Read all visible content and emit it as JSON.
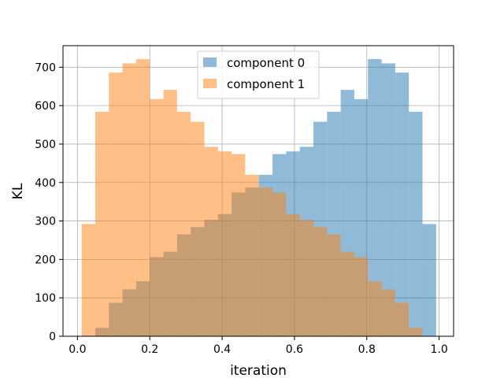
{
  "chart_data": {
    "type": "bar",
    "subtype": "overlapping-histogram",
    "title": "",
    "xlabel": "iteration",
    "ylabel": "KL",
    "xlim": [
      -0.04,
      1.04
    ],
    "ylim": [
      0,
      756
    ],
    "xticks": [
      0.0,
      0.2,
      0.4,
      0.6,
      0.8,
      1.0
    ],
    "xtick_labels": [
      "0.0",
      "0.2",
      "0.4",
      "0.6",
      "0.8",
      "1.0"
    ],
    "yticks": [
      0,
      100,
      200,
      300,
      400,
      500,
      600,
      700
    ],
    "ytick_labels": [
      "0",
      "100",
      "200",
      "300",
      "400",
      "500",
      "600",
      "700"
    ],
    "grid": true,
    "legend_position": "upper center",
    "bin_start": 0.0115,
    "bin_width": 0.0377,
    "series": [
      {
        "name": "component 0",
        "color": "#1f77b4",
        "alpha": 0.5,
        "values": [
          0,
          22,
          87,
          122,
          143,
          206,
          220,
          265,
          284,
          303,
          318,
          374,
          387,
          420,
          474,
          481,
          493,
          558,
          584,
          641,
          617,
          721,
          710,
          686,
          584,
          292
        ]
      },
      {
        "name": "component 1",
        "color": "#ff7f0e",
        "alpha": 0.5,
        "values": [
          292,
          584,
          686,
          710,
          721,
          617,
          641,
          584,
          558,
          493,
          481,
          474,
          420,
          387,
          374,
          318,
          303,
          284,
          265,
          220,
          206,
          143,
          122,
          87,
          22,
          0
        ]
      }
    ]
  }
}
